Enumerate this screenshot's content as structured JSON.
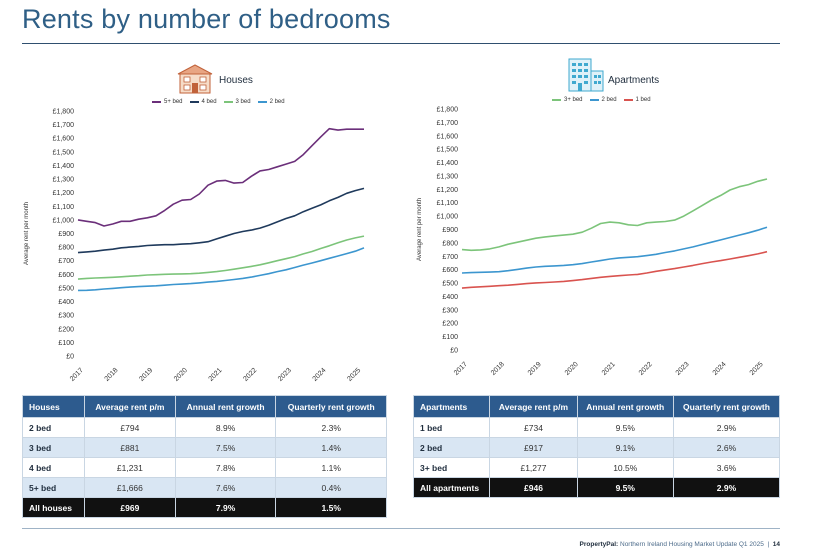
{
  "page": {
    "title": "Rents by number of bedrooms",
    "footer_brand": "PropertyPal:",
    "footer_text": "Northern Ireland Housing Market Update Q1 2025",
    "footer_separator": "|",
    "page_number": "14"
  },
  "colors": {
    "five_plus": "#6b2f7a",
    "four": "#1f3a5c",
    "three_plus": "#7cc47a",
    "two": "#3c96cf",
    "one": "#d9534f"
  },
  "chart_data": [
    {
      "type": "line",
      "title": "Houses",
      "icon": "house-icon",
      "ylabel": "Average rent per month",
      "xlabel": "",
      "ylim": [
        0,
        1800
      ],
      "y_ticks": [
        "£0",
        "£100",
        "£200",
        "£300",
        "£400",
        "£500",
        "£600",
        "£700",
        "£800",
        "£900",
        "£1,000",
        "£1,100",
        "£1,200",
        "£1,300",
        "£1,400",
        "£1,500",
        "£1,600",
        "£1,700",
        "£1,800"
      ],
      "x_ticks": [
        "2017",
        "2018",
        "2019",
        "2020",
        "2021",
        "2022",
        "2023",
        "2024",
        "2025"
      ],
      "x_range": [
        2017,
        2025.25
      ],
      "x": [
        2017,
        2017.25,
        2017.5,
        2017.75,
        2018,
        2018.25,
        2018.5,
        2018.75,
        2019,
        2019.25,
        2019.5,
        2019.75,
        2020,
        2020.25,
        2020.5,
        2020.75,
        2021,
        2021.25,
        2021.5,
        2021.75,
        2022,
        2022.25,
        2022.5,
        2022.75,
        2023,
        2023.25,
        2023.5,
        2023.75,
        2024,
        2024.25,
        2024.5,
        2024.75,
        2025,
        2025.25
      ],
      "legend": "top",
      "series": [
        {
          "name": "5+ bed",
          "color": "#6b2f7a",
          "values": [
            1000,
            990,
            980,
            955,
            970,
            990,
            990,
            1005,
            1015,
            1030,
            1070,
            1115,
            1145,
            1150,
            1190,
            1255,
            1285,
            1290,
            1270,
            1275,
            1320,
            1360,
            1370,
            1390,
            1410,
            1430,
            1480,
            1545,
            1610,
            1670,
            1660,
            1666,
            1666,
            1666
          ]
        },
        {
          "name": "4 bed",
          "color": "#1f3a5c",
          "values": [
            760,
            765,
            770,
            778,
            785,
            795,
            800,
            805,
            812,
            815,
            818,
            818,
            822,
            825,
            832,
            840,
            860,
            880,
            900,
            915,
            925,
            940,
            960,
            985,
            1010,
            1030,
            1060,
            1085,
            1110,
            1140,
            1165,
            1195,
            1215,
            1231
          ]
        },
        {
          "name": "3 bed",
          "color": "#7cc47a",
          "values": [
            565,
            570,
            573,
            575,
            578,
            582,
            586,
            590,
            595,
            597,
            600,
            602,
            603,
            605,
            608,
            614,
            620,
            628,
            638,
            648,
            658,
            670,
            685,
            700,
            715,
            730,
            750,
            768,
            790,
            810,
            832,
            852,
            868,
            881
          ]
        },
        {
          "name": "2 bed",
          "color": "#3c96cf",
          "values": [
            482,
            483,
            486,
            492,
            497,
            502,
            506,
            510,
            513,
            516,
            520,
            525,
            528,
            532,
            537,
            543,
            548,
            555,
            562,
            570,
            580,
            592,
            605,
            620,
            633,
            650,
            668,
            683,
            700,
            718,
            735,
            752,
            770,
            794
          ]
        }
      ]
    },
    {
      "type": "line",
      "title": "Apartments",
      "icon": "apartment-icon",
      "ylabel": "Average rent per month",
      "xlabel": "",
      "ylim": [
        0,
        1800
      ],
      "y_ticks": [
        "£0",
        "£100",
        "£200",
        "£300",
        "£400",
        "£500",
        "£600",
        "£700",
        "£800",
        "£900",
        "£1,000",
        "£1,100",
        "£1,200",
        "£1,300",
        "£1,400",
        "£1,500",
        "£1,600",
        "£1,700",
        "£1,800"
      ],
      "x_ticks": [
        "2017",
        "2018",
        "2019",
        "2020",
        "2021",
        "2022",
        "2023",
        "2024",
        "2025"
      ],
      "x_range": [
        2017,
        2025.25
      ],
      "x": [
        2017,
        2017.25,
        2017.5,
        2017.75,
        2018,
        2018.25,
        2018.5,
        2018.75,
        2019,
        2019.25,
        2019.5,
        2019.75,
        2020,
        2020.25,
        2020.5,
        2020.75,
        2021,
        2021.25,
        2021.5,
        2021.75,
        2022,
        2022.25,
        2022.5,
        2022.75,
        2023,
        2023.25,
        2023.5,
        2023.75,
        2024,
        2024.25,
        2024.5,
        2024.75,
        2025,
        2025.25
      ],
      "legend": "top",
      "series": [
        {
          "name": "3+ bed",
          "color": "#7cc47a",
          "values": [
            750,
            745,
            748,
            755,
            770,
            790,
            805,
            820,
            835,
            845,
            852,
            858,
            865,
            880,
            910,
            945,
            955,
            950,
            935,
            930,
            950,
            955,
            960,
            970,
            1000,
            1040,
            1080,
            1120,
            1155,
            1195,
            1220,
            1235,
            1260,
            1277
          ]
        },
        {
          "name": "2 bed",
          "color": "#3c96cf",
          "values": [
            575,
            578,
            580,
            582,
            585,
            592,
            602,
            612,
            620,
            625,
            628,
            632,
            637,
            645,
            657,
            668,
            680,
            688,
            692,
            697,
            705,
            715,
            728,
            740,
            755,
            770,
            788,
            805,
            822,
            840,
            858,
            875,
            895,
            917
          ]
        },
        {
          "name": "1 bed",
          "color": "#d9534f",
          "values": [
            462,
            468,
            472,
            476,
            480,
            484,
            490,
            496,
            501,
            504,
            508,
            512,
            518,
            526,
            535,
            543,
            550,
            555,
            560,
            565,
            575,
            588,
            598,
            608,
            620,
            632,
            645,
            657,
            668,
            680,
            692,
            704,
            718,
            734
          ]
        }
      ]
    }
  ],
  "tables": {
    "houses": {
      "headers": [
        "Houses",
        "Average rent p/m",
        "Annual rent growth",
        "Quarterly rent growth"
      ],
      "rows": [
        [
          "2 bed",
          "£794",
          "8.9%",
          "2.3%"
        ],
        [
          "3 bed",
          "£881",
          "7.5%",
          "1.4%"
        ],
        [
          "4 bed",
          "£1,231",
          "7.8%",
          "1.1%"
        ],
        [
          "5+ bed",
          "£1,666",
          "7.6%",
          "0.4%"
        ]
      ],
      "total": [
        "All houses",
        "£969",
        "7.9%",
        "1.5%"
      ]
    },
    "apartments": {
      "headers": [
        "Apartments",
        "Average rent p/m",
        "Annual rent growth",
        "Quarterly rent growth"
      ],
      "rows": [
        [
          "1 bed",
          "£734",
          "9.5%",
          "2.9%"
        ],
        [
          "2 bed",
          "£917",
          "9.1%",
          "2.6%"
        ],
        [
          "3+ bed",
          "£1,277",
          "10.5%",
          "3.6%"
        ]
      ],
      "total": [
        "All apartments",
        "£946",
        "9.5%",
        "2.9%"
      ]
    }
  }
}
